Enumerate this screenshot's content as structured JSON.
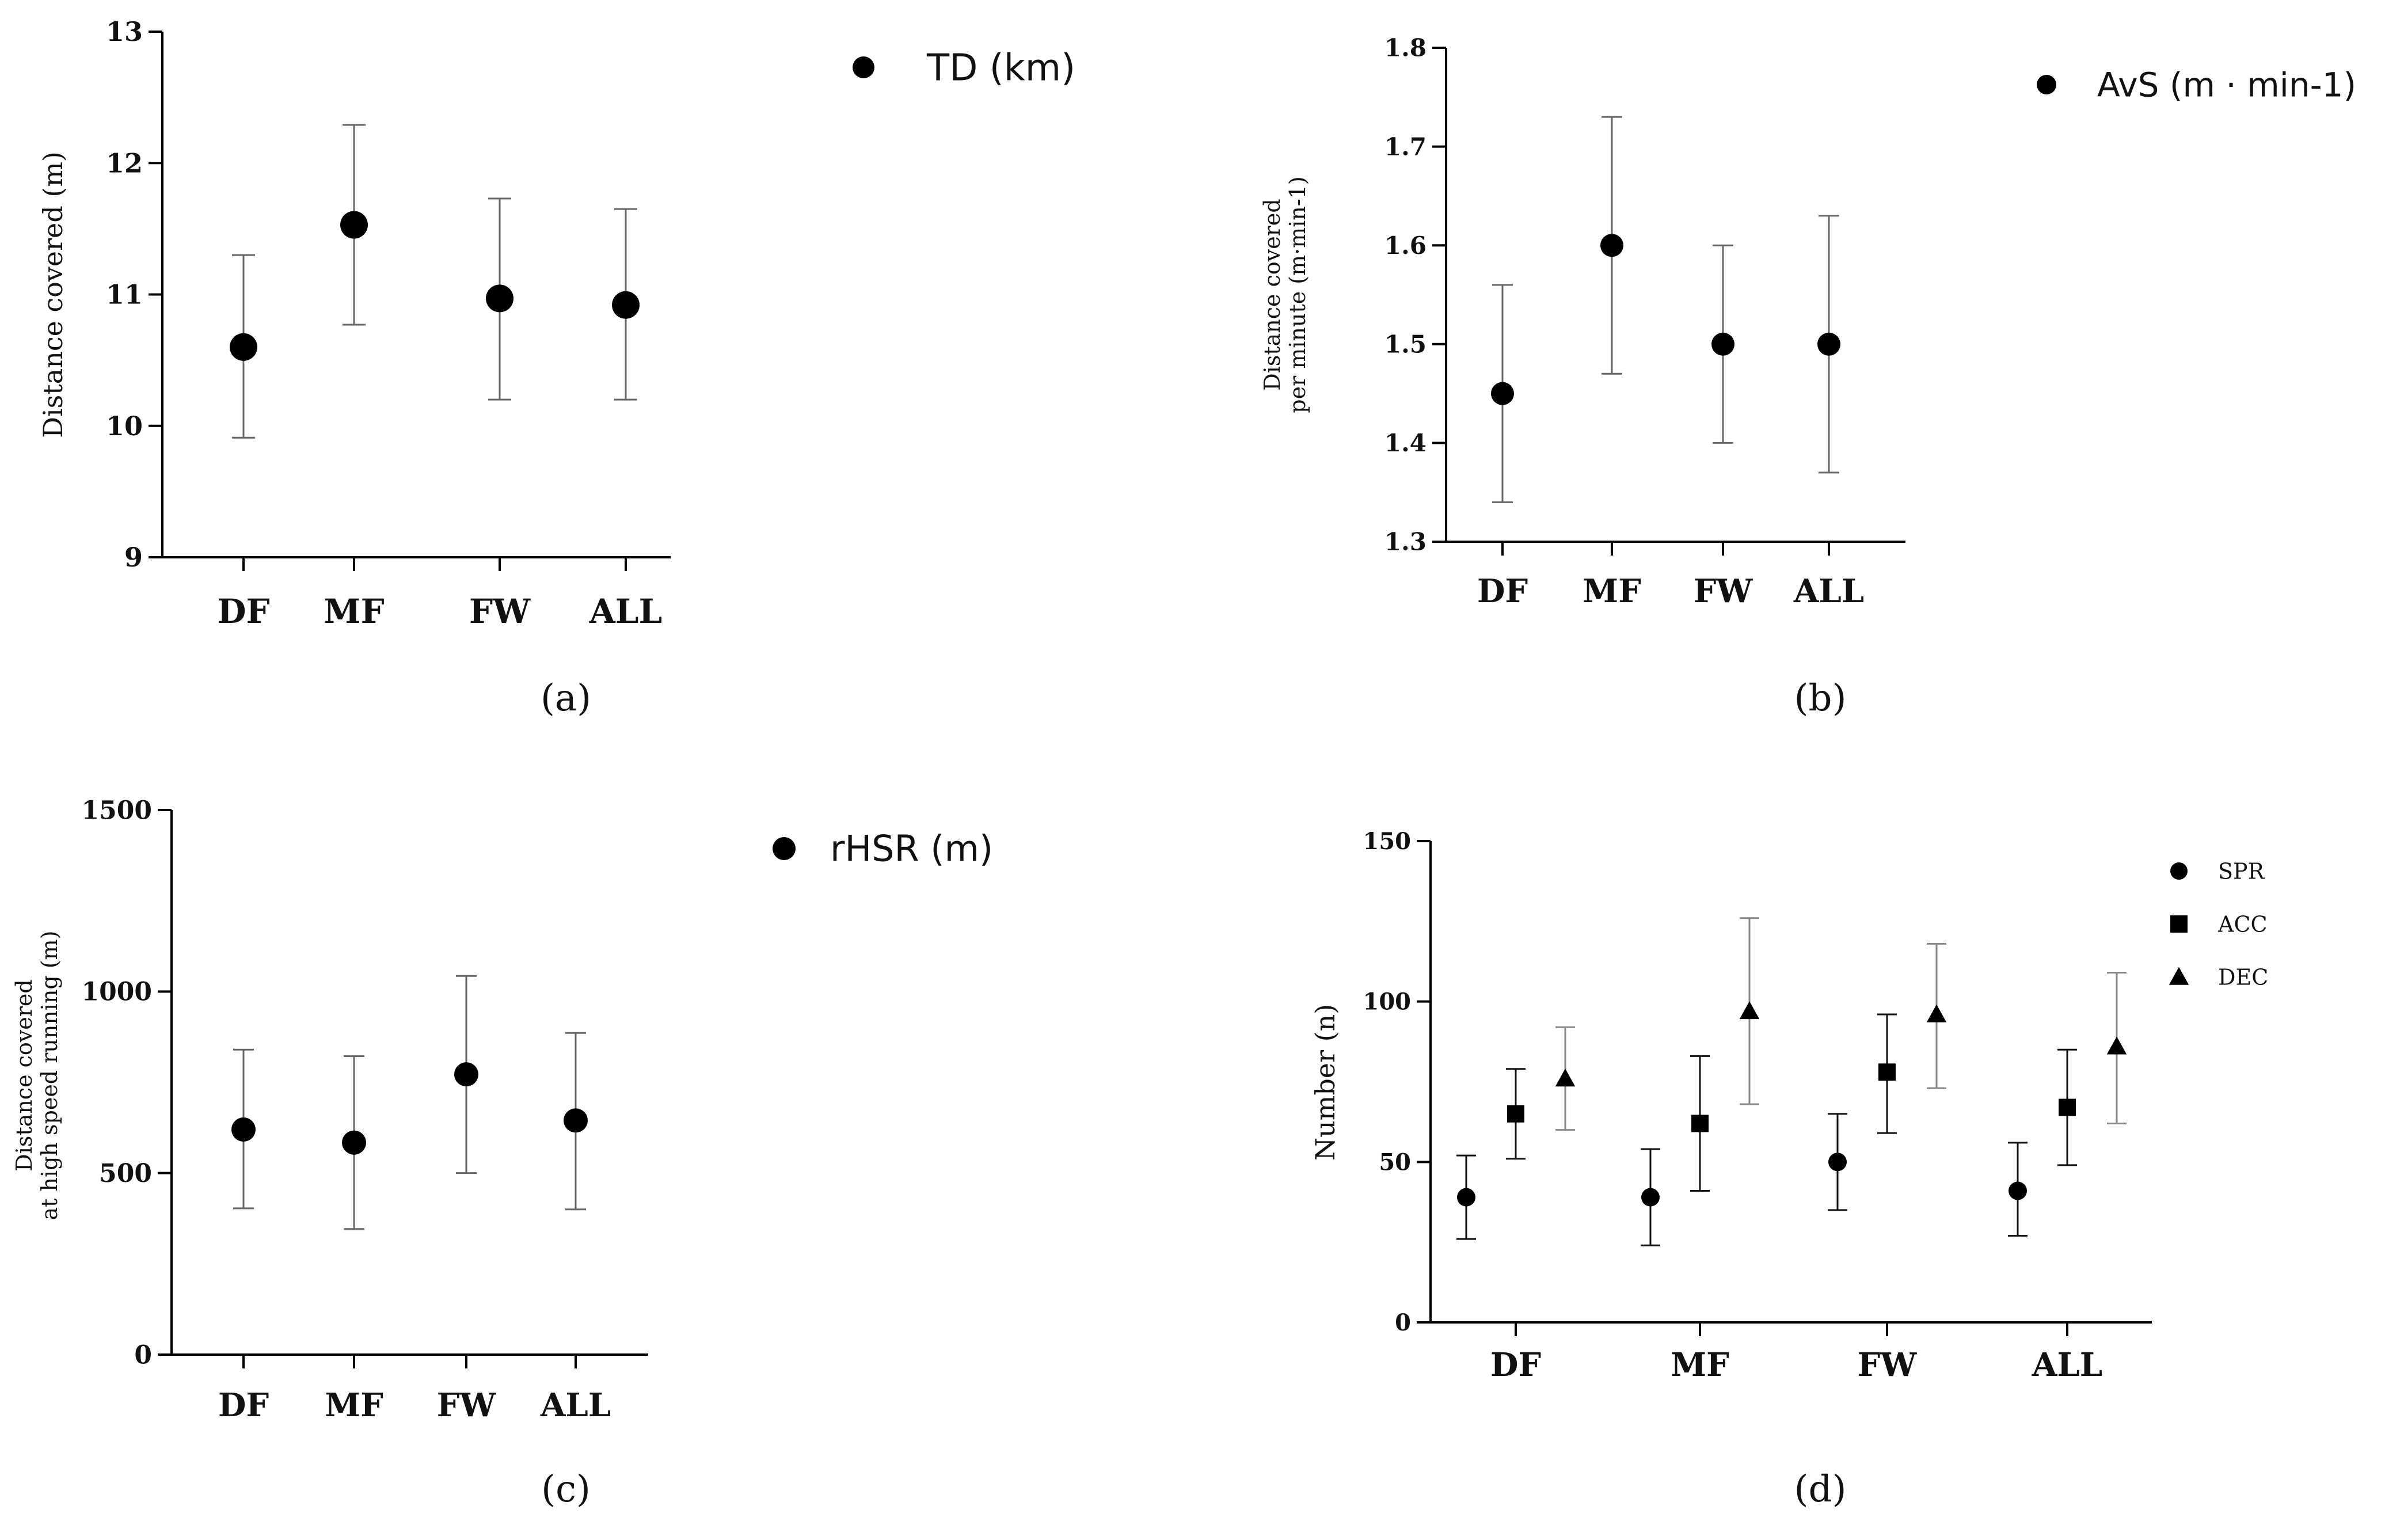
{
  "chart_data": [
    {
      "type": "scatter",
      "panel_label": "(a)",
      "legend": [
        "TD (km)"
      ],
      "ylabel": [
        "Distance covered (m)"
      ],
      "categories": [
        "DF",
        "MF",
        "FW",
        "ALL"
      ],
      "ylim": [
        9,
        13
      ],
      "yticks": [
        "9",
        "10",
        "11",
        "12",
        "13"
      ],
      "series": [
        {
          "name": "TD (km)",
          "marker": "circle",
          "points": [
            {
              "mean": 10.6,
              "low": 9.91,
              "high": 11.3
            },
            {
              "mean": 11.53,
              "low": 10.77,
              "high": 12.29
            },
            {
              "mean": 10.97,
              "low": 10.2,
              "high": 11.73
            },
            {
              "mean": 10.92,
              "low": 10.2,
              "high": 11.65
            }
          ]
        }
      ]
    },
    {
      "type": "scatter",
      "panel_label": "(b)",
      "legend": [
        "AvS (m · min-1)"
      ],
      "ylabel": [
        "Distance covered",
        "per minute (m·min-1)"
      ],
      "categories": [
        "DF",
        "MF",
        "FW",
        "ALL"
      ],
      "ylim": [
        1.3,
        1.8
      ],
      "yticks": [
        "1.3",
        "1.4",
        "1.5",
        "1.6",
        "1.7",
        "1.8"
      ],
      "series": [
        {
          "name": "AvS (m · min-1)",
          "marker": "circle",
          "points": [
            {
              "mean": 1.45,
              "low": 1.34,
              "high": 1.56
            },
            {
              "mean": 1.6,
              "low": 1.47,
              "high": 1.73
            },
            {
              "mean": 1.5,
              "low": 1.4,
              "high": 1.6
            },
            {
              "mean": 1.5,
              "low": 1.37,
              "high": 1.63
            }
          ]
        }
      ]
    },
    {
      "type": "scatter",
      "panel_label": "(c)",
      "legend": [
        "rHSR (m)"
      ],
      "ylabel": [
        "Distance covered",
        "at high speed running (m)"
      ],
      "categories": [
        "DF",
        "MF",
        "FW",
        "ALL"
      ],
      "ylim": [
        0,
        1500
      ],
      "yticks": [
        "0",
        "500",
        "1000",
        "1500"
      ],
      "series": [
        {
          "name": "rHSR (m)",
          "marker": "circle",
          "points": [
            {
              "mean": 620,
              "low": 403,
              "high": 840
            },
            {
              "mean": 584,
              "low": 346,
              "high": 822
            },
            {
              "mean": 772,
              "low": 500,
              "high": 1043
            },
            {
              "mean": 645,
              "low": 400,
              "high": 886
            }
          ]
        }
      ]
    },
    {
      "type": "scatter",
      "panel_label": "(d)",
      "legend": [
        "SPR",
        "ACC",
        "DEC"
      ],
      "ylabel": [
        "Number (n)"
      ],
      "categories": [
        "DF",
        "MF",
        "FW",
        "ALL"
      ],
      "ylim": [
        0,
        150
      ],
      "yticks": [
        "0",
        "50",
        "100",
        "150"
      ],
      "series": [
        {
          "name": "SPR",
          "marker": "circle",
          "points": [
            {
              "mean": 39,
              "low": 26,
              "high": 52
            },
            {
              "mean": 39,
              "low": 24,
              "high": 54
            },
            {
              "mean": 50,
              "low": 35,
              "high": 65
            },
            {
              "mean": 41,
              "low": 27,
              "high": 56
            }
          ]
        },
        {
          "name": "ACC",
          "marker": "square",
          "points": [
            {
              "mean": 65,
              "low": 51,
              "high": 79
            },
            {
              "mean": 62,
              "low": 41,
              "high": 83
            },
            {
              "mean": 78,
              "low": 59,
              "high": 96
            },
            {
              "mean": 67,
              "low": 49,
              "high": 85
            }
          ]
        },
        {
          "name": "DEC",
          "marker": "triangle",
          "points": [
            {
              "mean": 76,
              "low": 60,
              "high": 92
            },
            {
              "mean": 97,
              "low": 68,
              "high": 126
            },
            {
              "mean": 96,
              "low": 73,
              "high": 118
            },
            {
              "mean": 86,
              "low": 62,
              "high": 109
            }
          ]
        }
      ]
    }
  ]
}
